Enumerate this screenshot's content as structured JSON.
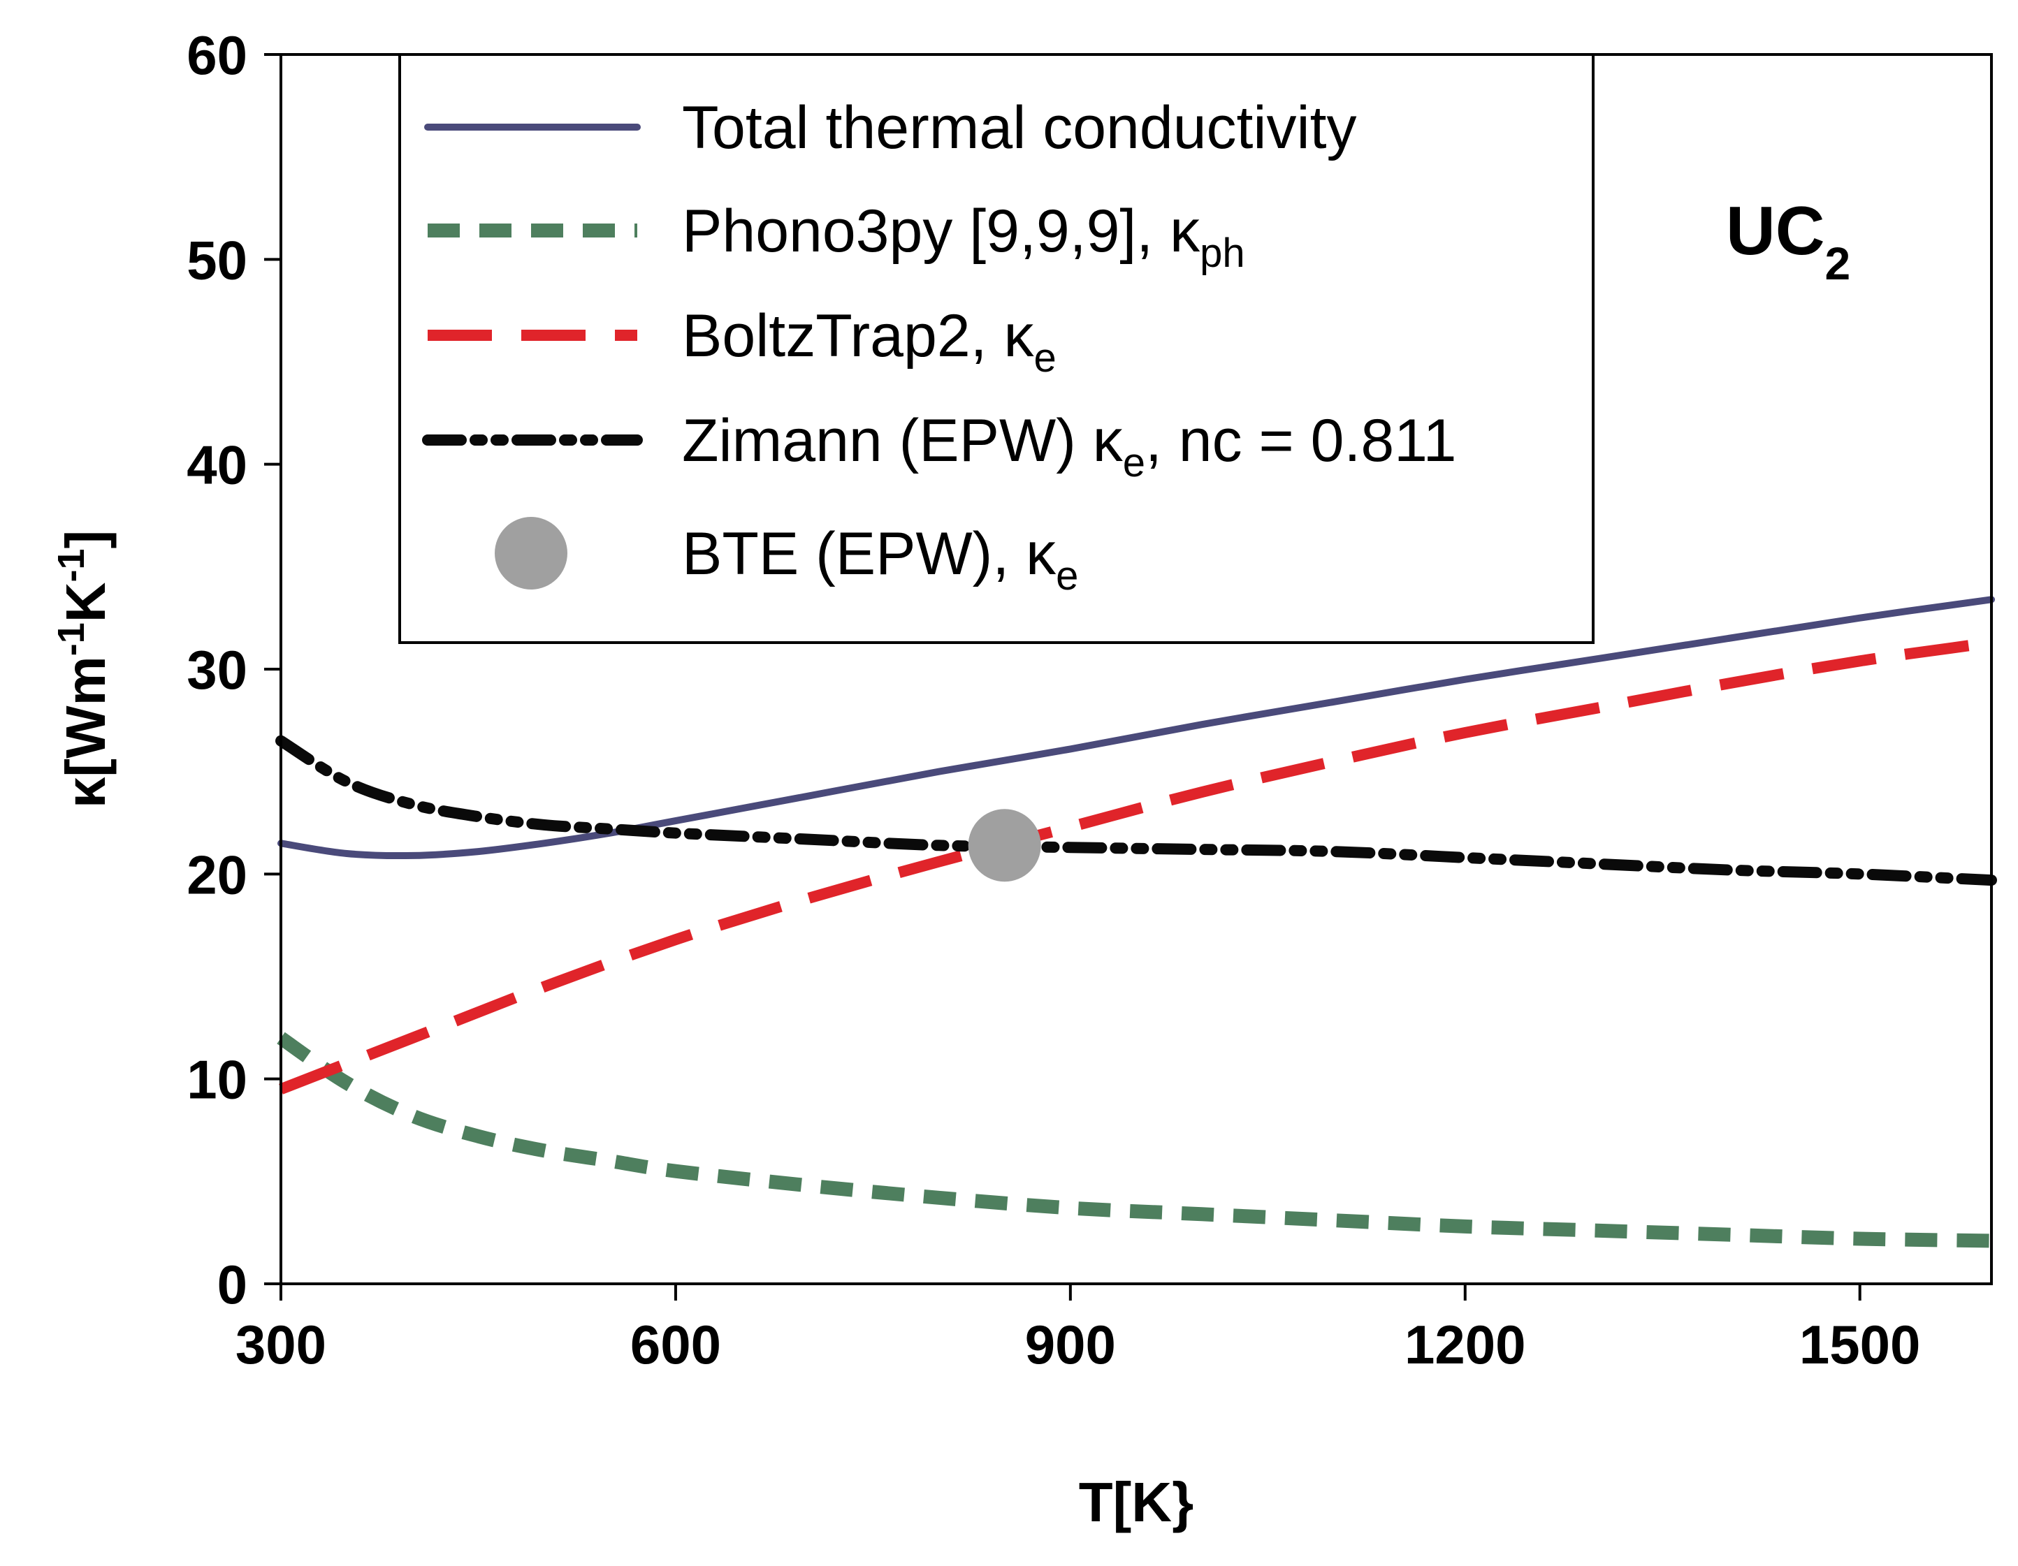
{
  "chart_data": {
    "type": "line",
    "xlabel": "T[K}",
    "ylabel": {
      "base": "κ[Wm",
      "sup1": "-1",
      "mid": "K",
      "sup2": "-1",
      "end": "]"
    },
    "xlim": [
      300,
      1600
    ],
    "ylim": [
      0,
      60
    ],
    "xticks": [
      300,
      600,
      900,
      1200,
      1500
    ],
    "yticks": [
      0,
      10,
      20,
      30,
      40,
      50,
      60
    ],
    "grid": false,
    "legend_position": "top",
    "annotation": {
      "main": "UC",
      "sub": "2"
    },
    "series": [
      {
        "name": "Total thermal conductivity",
        "legend": {
          "main": "Total thermal conductivity",
          "sub": "",
          "suffix": ""
        },
        "color": "#4a4a7a",
        "style": "solid",
        "x": [
          300,
          350,
          400,
          450,
          500,
          550,
          600,
          700,
          800,
          900,
          1000,
          1100,
          1200,
          1300,
          1400,
          1500,
          1600
        ],
        "y": [
          21.5,
          21.0,
          20.9,
          21.1,
          21.5,
          22.0,
          22.6,
          23.8,
          25.0,
          26.1,
          27.3,
          28.4,
          29.5,
          30.5,
          31.5,
          32.5,
          33.4
        ]
      },
      {
        "name": "Phono3py [9,9,9], κph",
        "legend": {
          "main": "Phono3py [9,9,9], κ",
          "sub": "ph",
          "suffix": ""
        },
        "color": "#4e7f5e",
        "style": "dashed-short",
        "x": [
          300,
          350,
          400,
          450,
          500,
          550,
          600,
          700,
          800,
          900,
          1000,
          1100,
          1200,
          1300,
          1400,
          1500,
          1600
        ],
        "y": [
          12.0,
          9.8,
          8.2,
          7.2,
          6.5,
          6.0,
          5.5,
          4.8,
          4.2,
          3.7,
          3.4,
          3.1,
          2.8,
          2.6,
          2.4,
          2.2,
          2.1
        ]
      },
      {
        "name": "BoltzTrap2, κe",
        "legend": {
          "main": "BoltzTrap2, κ",
          "sub": "e",
          "suffix": ""
        },
        "color": "#e0242a",
        "style": "dashed-long",
        "x": [
          300,
          400,
          500,
          600,
          700,
          800,
          900,
          1000,
          1100,
          1200,
          1300,
          1400,
          1500,
          1600
        ],
        "y": [
          9.5,
          12.0,
          14.5,
          16.8,
          18.8,
          20.6,
          22.3,
          24.0,
          25.5,
          26.9,
          28.1,
          29.3,
          30.4,
          31.3
        ]
      },
      {
        "name": "Zimann (EPW) κe, nc = 0.811",
        "legend": {
          "main": "Zimann (EPW) κ",
          "sub": "e",
          "suffix": ", nc = 0.811"
        },
        "color": "#0a0a0a",
        "style": "dash-dot-dot",
        "x": [
          300,
          350,
          400,
          450,
          500,
          550,
          600,
          700,
          800,
          900,
          1000,
          1100,
          1200,
          1300,
          1400,
          1500,
          1600
        ],
        "y": [
          26.5,
          24.5,
          23.4,
          22.8,
          22.4,
          22.2,
          22.0,
          21.7,
          21.4,
          21.3,
          21.2,
          21.1,
          20.8,
          20.5,
          20.2,
          20.0,
          19.7
        ]
      },
      {
        "name": "BTE (EPW), κe",
        "legend": {
          "main": "BTE (EPW), κ",
          "sub": "e",
          "suffix": ""
        },
        "color": "#a0a0a0",
        "style": "marker",
        "x": [
          850
        ],
        "y": [
          21.4
        ]
      }
    ]
  }
}
